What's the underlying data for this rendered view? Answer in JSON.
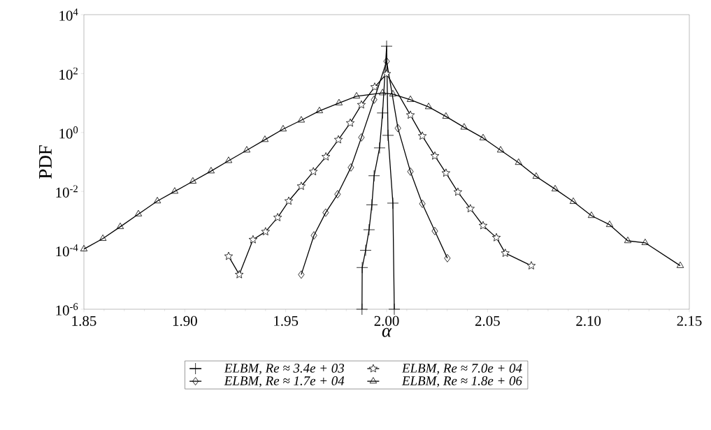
{
  "chart_data": {
    "type": "line",
    "xlabel": "α",
    "ylabel": "PDF",
    "log": "y",
    "legend": "bottom",
    "line_style": "solid",
    "xlim": [
      1.85,
      2.15
    ],
    "xticks": [
      {
        "value": 1.85,
        "label": "1.85"
      },
      {
        "value": 1.9,
        "label": "1.90"
      },
      {
        "value": 1.95,
        "label": "1.95"
      },
      {
        "value": 2.0,
        "label": "2.00"
      },
      {
        "value": 2.05,
        "label": "2.05"
      },
      {
        "value": 2.1,
        "label": "2.10"
      },
      {
        "value": 2.15,
        "label": "2.15"
      }
    ],
    "ylim": [
      1e-06,
      10000
    ],
    "yticks": [
      {
        "value": 1e-06,
        "label": "10$^{-6}$"
      },
      {
        "value": 0.0001,
        "label": "10$^{-4}$"
      },
      {
        "value": 0.01,
        "label": "10$^{-2}$"
      },
      {
        "value": 1,
        "label": "10$^{0}$"
      },
      {
        "value": 100,
        "label": "10$^{2}$"
      },
      {
        "value": 10000,
        "label": "10$^{4}$"
      }
    ],
    "series": [
      {
        "name": "ELBM, Re ≈ 3.4e + 03",
        "color": "#000000",
        "marker": "cross",
        "x": [
          1.9878,
          1.9879,
          1.9896,
          1.9913,
          1.9927,
          1.9938,
          1.9965,
          1.998,
          2.0,
          2.0007,
          2.0031,
          2.0038
        ],
        "values": [
          1e-06,
          2.6e-05,
          0.0001,
          0.0005,
          0.0035,
          0.034,
          0.3,
          4.6,
          850,
          0.8,
          0.004,
          1e-06
        ]
      },
      {
        "name": "ELBM, Re ≈ 1.7e + 04",
        "color": "#000000",
        "marker": "diamond",
        "x": [
          1.9577,
          1.964,
          1.9698,
          1.9757,
          1.9823,
          1.9875,
          1.9938,
          2.0,
          2.0056,
          2.0118,
          2.0177,
          2.0239,
          2.0301
        ],
        "values": [
          1.5e-05,
          0.00032,
          0.0019,
          0.008,
          0.065,
          0.68,
          13,
          260,
          1.4,
          0.047,
          0.0038,
          0.00045,
          5.4e-05
        ]
      },
      {
        "name": "ELBM, Re ≈ 7.0e + 04",
        "color": "#000000",
        "marker": "star",
        "x": [
          1.9217,
          1.927,
          1.9338,
          1.94,
          1.946,
          1.9515,
          1.9577,
          1.9637,
          1.9699,
          1.9761,
          1.982,
          1.9875,
          1.9941,
          2.0,
          2.0118,
          2.0177,
          2.0239,
          2.0294,
          2.0353,
          2.0415,
          2.0478,
          2.0544,
          2.0588,
          2.0717
        ],
        "values": [
          6.3e-05,
          1.5e-05,
          0.00023,
          0.00043,
          0.0013,
          0.0047,
          0.015,
          0.047,
          0.15,
          0.57,
          2.1,
          8.7,
          35,
          98,
          3.9,
          0.76,
          0.16,
          0.042,
          0.0095,
          0.0026,
          0.00069,
          0.00027,
          8e-05,
          3e-05
        ]
      },
      {
        "name": "ELBM, Re ≈ 1.8e + 06",
        "color": "#000000",
        "marker": "triangle",
        "x": [
          1.85,
          1.8594,
          1.868,
          1.877,
          1.8864,
          1.895,
          1.904,
          1.913,
          1.9217,
          1.9307,
          1.9397,
          1.9487,
          1.9577,
          1.9667,
          1.9764,
          1.9851,
          1.998,
          2.0031,
          2.0118,
          2.0208,
          2.0294,
          2.0384,
          2.0478,
          2.0565,
          2.0654,
          2.0741,
          2.0835,
          2.0925,
          2.1015,
          2.1105,
          2.1195,
          2.1281,
          2.1455
        ],
        "values": [
          0.00011,
          0.00025,
          0.00063,
          0.0017,
          0.0047,
          0.01,
          0.022,
          0.049,
          0.11,
          0.25,
          0.57,
          1.3,
          2.6,
          5.4,
          10,
          17,
          22,
          20,
          13,
          7.4,
          3.5,
          1.5,
          0.65,
          0.25,
          0.095,
          0.032,
          0.012,
          0.0045,
          0.0015,
          0.00074,
          0.00021,
          0.00018,
          3e-05
        ]
      }
    ]
  }
}
